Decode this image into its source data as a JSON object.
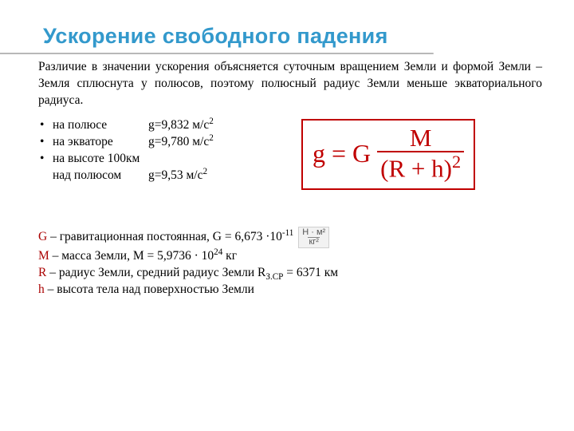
{
  "title": "Ускорение свободного падения",
  "intro": "Различие в значении ускорения объясняется суточным вращением Земли и формой Земли – Земля сплюснута у полюсов, поэтому полюсный радиус Земли меньше экваториального радиуса.",
  "gvals": {
    "pole_label": "на полюсе",
    "pole_val_prefix": "g=9,832 м/с",
    "equator_label": "на экваторе",
    "equator_val_prefix": "g=9,780 м/с",
    "h100_line1": "на высоте 100км",
    "h100_line2_label": "над полюсом",
    "h100_val_prefix": "g=9,53 м/с",
    "exp": "2"
  },
  "formula": {
    "lhs": "g",
    "eq": "=",
    "G": "G",
    "num": "M",
    "den_open": "(R + h)",
    "den_exp": "2",
    "box_border_color": "#c00000",
    "text_color": "#c00000"
  },
  "defs": {
    "G_sym": "G",
    "G_text_pre": " – гравитационная постоянная, G = 6,673 ·10",
    "G_exp": "-11",
    "M_sym": "M",
    "M_text_pre": " – масса Земли, M = 5,9736 · 10",
    "M_exp": "24",
    "M_text_post": " кг",
    "R_sym": "R",
    "R_text_pre": " – радиус Земли, средний радиус Земли R",
    "R_sub": "З.СР",
    "R_text_post": " = 6371 км",
    "h_sym": "h",
    "h_text": " – высота тела над поверхностью Земли"
  },
  "unit": {
    "num": "Н · м²",
    "den": "кг²"
  },
  "colors": {
    "title": "#3399cc",
    "title_underline": "#b8b8b8",
    "text": "#000000",
    "red": "#aa0000",
    "formula_red": "#c00000",
    "background": "#ffffff"
  }
}
